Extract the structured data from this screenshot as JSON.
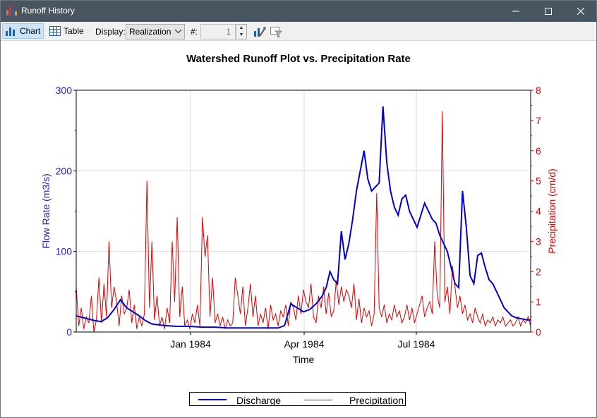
{
  "window": {
    "title": "Runoff History",
    "minimize_icon": "minimize-icon",
    "maximize_icon": "maximize-icon",
    "close_icon": "close-icon"
  },
  "toolbar": {
    "chart_label": "Chart",
    "table_label": "Table",
    "display_label": "Display:",
    "display_value": "Realization",
    "number_label": "#:",
    "number_value": "1"
  },
  "chart_data": {
    "type": "line",
    "title": "Watershed Runoff Plot vs. Precipitation Rate",
    "xlabel": "Time",
    "ylabel": "Flow Rate (m3/s)",
    "y2label": "Precipitation (cm/d)",
    "x_tick_labels": [
      "Jan 1984",
      "Apr 1984",
      "Jul 1984"
    ],
    "y_ticks": [
      0,
      100,
      200,
      300
    ],
    "y2_ticks": [
      0,
      1,
      2,
      3,
      4,
      5,
      6,
      7,
      8
    ],
    "ylim": [
      0,
      300
    ],
    "y2lim": [
      0,
      8
    ],
    "grid": true,
    "legend_position": "bottom",
    "colors": {
      "discharge": "#0000cc",
      "precipitation": "#dd0000",
      "axis_left": "#2020d0",
      "axis_right": "#dd0000"
    },
    "series": [
      {
        "name": "Discharge",
        "axis": "left",
        "x_days_from_start": [
          0,
          5,
          10,
          15,
          20,
          25,
          30,
          35,
          40,
          45,
          50,
          55,
          60,
          70,
          80,
          90,
          100,
          110,
          120,
          130,
          140,
          150,
          160,
          165,
          170,
          175,
          180,
          185,
          190,
          195,
          198,
          201,
          204,
          207,
          210,
          213,
          216,
          219,
          222,
          225,
          228,
          231,
          234,
          237,
          240,
          243,
          246,
          249,
          252,
          255,
          258,
          261,
          264,
          267,
          270,
          273,
          276,
          279,
          282,
          285,
          288,
          291,
          294,
          297,
          300,
          303,
          306,
          309,
          312,
          315,
          318,
          321,
          324,
          327,
          330,
          333,
          336,
          339,
          342,
          345,
          348,
          351,
          354,
          357,
          360
        ],
        "values": [
          20,
          18,
          16,
          14,
          13,
          18,
          28,
          40,
          30,
          25,
          20,
          14,
          10,
          8,
          7,
          7,
          6,
          6,
          5,
          5,
          5,
          5,
          5,
          8,
          35,
          30,
          25,
          28,
          35,
          45,
          55,
          75,
          65,
          60,
          125,
          90,
          110,
          140,
          175,
          200,
          225,
          190,
          175,
          180,
          185,
          280,
          210,
          175,
          155,
          145,
          165,
          170,
          150,
          140,
          130,
          145,
          160,
          150,
          140,
          135,
          120,
          110,
          100,
          80,
          60,
          55,
          175,
          130,
          70,
          60,
          95,
          98,
          80,
          65,
          60,
          50,
          40,
          30,
          25,
          20,
          18,
          17,
          16,
          15,
          15
        ]
      },
      {
        "name": "Precipitation",
        "axis": "right",
        "x_days_from_start": [
          0,
          2,
          4,
          6,
          8,
          10,
          12,
          14,
          16,
          18,
          20,
          22,
          24,
          26,
          28,
          30,
          32,
          34,
          36,
          38,
          40,
          42,
          44,
          46,
          48,
          50,
          52,
          54,
          56,
          58,
          60,
          62,
          64,
          66,
          68,
          70,
          72,
          74,
          76,
          78,
          80,
          82,
          84,
          86,
          88,
          90,
          92,
          94,
          96,
          98,
          100,
          102,
          104,
          106,
          108,
          110,
          112,
          114,
          116,
          118,
          120,
          122,
          124,
          126,
          128,
          130,
          132,
          134,
          136,
          138,
          140,
          142,
          144,
          146,
          148,
          150,
          152,
          154,
          156,
          158,
          160,
          162,
          164,
          166,
          168,
          170,
          172,
          174,
          176,
          178,
          180,
          182,
          184,
          186,
          188,
          190,
          192,
          194,
          196,
          198,
          200,
          202,
          204,
          206,
          208,
          210,
          212,
          214,
          216,
          218,
          220,
          222,
          224,
          226,
          228,
          230,
          232,
          234,
          236,
          238,
          240,
          242,
          244,
          246,
          248,
          250,
          252,
          254,
          256,
          258,
          260,
          262,
          264,
          266,
          268,
          270,
          272,
          274,
          276,
          278,
          280,
          282,
          284,
          286,
          288,
          290,
          292,
          294,
          296,
          298,
          300,
          302,
          304,
          306,
          308,
          310,
          312,
          314,
          316,
          318,
          320,
          322,
          324,
          326,
          328,
          330,
          332,
          334,
          336,
          338,
          340,
          342,
          344,
          346,
          348,
          350,
          352,
          354,
          356,
          358,
          360
        ],
        "values": [
          1.5,
          0.2,
          0.8,
          0.1,
          0.5,
          0.3,
          1.2,
          0.0,
          0.4,
          1.8,
          0.3,
          1.6,
          0.5,
          3.0,
          0.8,
          1.5,
          1.0,
          0.2,
          1.2,
          0.6,
          0.8,
          1.4,
          0.3,
          0.9,
          0.1,
          0.5,
          0.2,
          0.6,
          5.0,
          0.8,
          3.0,
          0.4,
          1.2,
          0.2,
          0.5,
          0.1,
          0.8,
          0.3,
          3.0,
          1.0,
          3.8,
          0.5,
          1.5,
          0.2,
          0.4,
          0.1,
          0.6,
          0.3,
          0.9,
          0.2,
          3.8,
          2.5,
          3.2,
          0.5,
          1.8,
          0.3,
          0.6,
          0.2,
          0.5,
          0.1,
          0.4,
          0.2,
          0.3,
          1.8,
          1.2,
          0.6,
          1.5,
          0.2,
          0.8,
          1.6,
          0.5,
          1.2,
          0.2,
          0.6,
          0.3,
          0.8,
          0.1,
          0.9,
          0.4,
          0.6,
          0.2,
          0.7,
          0.5,
          0.9,
          0.2,
          1.0,
          0.8,
          0.4,
          1.2,
          0.6,
          1.4,
          1.0,
          0.8,
          1.6,
          0.5,
          0.3,
          1.2,
          0.8,
          1.5,
          0.6,
          1.3,
          0.5,
          0.7,
          1.7,
          0.9,
          1.5,
          1.0,
          1.4,
          1.2,
          0.8,
          1.6,
          0.4,
          1.1,
          0.3,
          0.8,
          0.5,
          0.7,
          0.2,
          0.6,
          4.6,
          0.8,
          0.5,
          0.9,
          0.3,
          0.6,
          0.4,
          0.9,
          0.5,
          0.7,
          0.3,
          0.5,
          0.9,
          0.4,
          0.8,
          0.3,
          0.6,
          0.9,
          1.2,
          0.5,
          0.8,
          1.0,
          0.6,
          3.0,
          1.2,
          0.8,
          7.3,
          1.0,
          1.5,
          0.6,
          2.2,
          1.5,
          0.8,
          1.2,
          0.6,
          0.9,
          0.4,
          0.6,
          0.3,
          0.8,
          0.5,
          0.3,
          0.6,
          0.2,
          0.4,
          0.3,
          0.5,
          0.2,
          0.4,
          0.3,
          0.5,
          0.2,
          0.3,
          0.4,
          0.2,
          0.3,
          0.5,
          0.2,
          0.4,
          0.3,
          0.5,
          0.2,
          0.4,
          0.3,
          0.2,
          0.3,
          0.2,
          0.4
        ]
      }
    ]
  }
}
